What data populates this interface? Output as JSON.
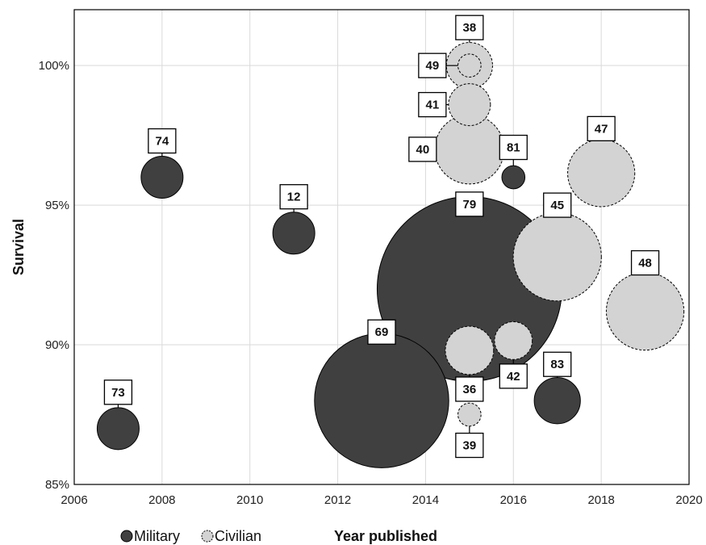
{
  "chart_data": {
    "type": "scatter",
    "title": "",
    "xlabel": "Year published",
    "ylabel": "Survival",
    "xlim": [
      2006,
      2020
    ],
    "ylim": [
      85,
      102
    ],
    "x_ticks": [
      2006,
      2008,
      2010,
      2012,
      2014,
      2016,
      2018,
      2020
    ],
    "y_ticks": [
      85,
      90,
      95,
      100
    ],
    "y_tick_labels": [
      "85%",
      "90%",
      "95%",
      "100%"
    ],
    "grid": true,
    "legend_position": "bottom-left",
    "colors": {
      "military_fill": "#404040",
      "civilian_fill": "#d3d3d3",
      "stroke": "#000000",
      "grid": "#d9d9d9"
    },
    "series": [
      {
        "name": "Military",
        "points": [
          {
            "x": 2007,
            "y": 87.0,
            "size": 1.0,
            "label": "73"
          },
          {
            "x": 2008,
            "y": 96.0,
            "size": 1.0,
            "label": "74"
          },
          {
            "x": 2011,
            "y": 94.0,
            "size": 1.0,
            "label": "12"
          },
          {
            "x": 2013,
            "y": 88.0,
            "size": 3.2,
            "label": "69"
          },
          {
            "x": 2015,
            "y": 92.0,
            "size": 4.4,
            "label": "79"
          },
          {
            "x": 2016,
            "y": 96.0,
            "size": 0.55,
            "label": "81"
          },
          {
            "x": 2017,
            "y": 88.0,
            "size": 1.1,
            "label": "83"
          }
        ]
      },
      {
        "name": "Civilian",
        "points": [
          {
            "x": 2015,
            "y": 100.0,
            "size": 1.1,
            "label": "38"
          },
          {
            "x": 2015,
            "y": 100.0,
            "size": 0.55,
            "label": "49"
          },
          {
            "x": 2015,
            "y": 98.6,
            "size": 1.0,
            "label": "41"
          },
          {
            "x": 2015,
            "y": 97.0,
            "size": 1.65,
            "label": "40"
          },
          {
            "x": 2018,
            "y": 96.15,
            "size": 1.6,
            "label": "47"
          },
          {
            "x": 2017,
            "y": 93.15,
            "size": 2.1,
            "label": "45"
          },
          {
            "x": 2019,
            "y": 91.2,
            "size": 1.85,
            "label": "48"
          },
          {
            "x": 2015,
            "y": 89.8,
            "size": 1.15,
            "label": "36"
          },
          {
            "x": 2016,
            "y": 90.15,
            "size": 0.9,
            "label": "42"
          },
          {
            "x": 2015,
            "y": 87.5,
            "size": 0.55,
            "label": "39"
          }
        ]
      }
    ]
  }
}
